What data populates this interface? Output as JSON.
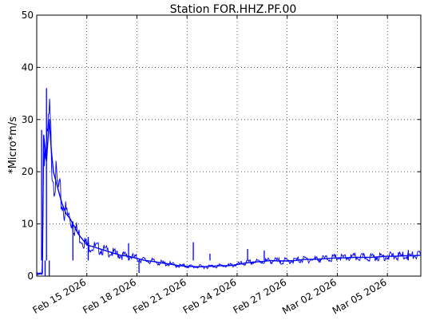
{
  "chart_data": {
    "type": "line",
    "title": "Station FOR.HHZ.PF.00",
    "xlabel": "",
    "ylabel": "*Micro*m/s",
    "xlim": [
      "2026-02-12",
      "2026-03-07"
    ],
    "ylim": [
      0,
      50
    ],
    "y_ticks": [
      0,
      10,
      20,
      30,
      40,
      50
    ],
    "x_ticks": [
      {
        "date": "2026-02-15",
        "label": "Feb 15 2026"
      },
      {
        "date": "2026-02-18",
        "label": "Feb 18 2026"
      },
      {
        "date": "2026-02-21",
        "label": "Feb 21 2026"
      },
      {
        "date": "2026-02-24",
        "label": "Feb 24 2026"
      },
      {
        "date": "2026-02-27",
        "label": "Feb 27 2026"
      },
      {
        "date": "2026-03-02",
        "label": "Mar 02 2026"
      },
      {
        "date": "2026-03-05",
        "label": "Mar 05 2026"
      }
    ],
    "grid": true,
    "series": [
      {
        "color": "#0000ff",
        "x": [
          "2026-02-12 00:00",
          "2026-02-12 08:00",
          "2026-02-12 10:00",
          "2026-02-12 14:00",
          "2026-02-12 18:00",
          "2026-02-12 21:00",
          "2026-02-13 00:00",
          "2026-02-13 06:00",
          "2026-02-13 12:00",
          "2026-02-13 18:00",
          "2026-02-14 00:00",
          "2026-02-14 06:00",
          "2026-02-14 12:00",
          "2026-02-14 18:00",
          "2026-02-15 00:00",
          "2026-02-15 12:00",
          "2026-02-16 00:00",
          "2026-02-16 12:00",
          "2026-02-17 00:00",
          "2026-02-17 12:00",
          "2026-02-18 00:00",
          "2026-02-18 12:00",
          "2026-02-19 00:00",
          "2026-02-19 12:00",
          "2026-02-20 00:00",
          "2026-02-20 12:00",
          "2026-02-21 00:00",
          "2026-02-21 12:00",
          "2026-02-22 00:00",
          "2026-02-22 12:00",
          "2026-02-23 00:00",
          "2026-02-23 12:00",
          "2026-02-24 00:00",
          "2026-02-24 12:00",
          "2026-02-25 00:00",
          "2026-02-25 12:00",
          "2026-02-26 00:00",
          "2026-02-26 12:00",
          "2026-02-27 00:00",
          "2026-02-27 12:00",
          "2026-02-28 00:00",
          "2026-02-28 12:00",
          "2026-03-01 00:00",
          "2026-03-01 12:00",
          "2026-03-02 00:00",
          "2026-03-02 12:00",
          "2026-03-03 00:00",
          "2026-03-03 12:00",
          "2026-03-04 00:00",
          "2026-03-04 12:00",
          "2026-03-05 00:00",
          "2026-03-05 12:00",
          "2026-03-06 00:00",
          "2026-03-06 12:00",
          "2026-03-07 00:00"
        ],
        "y": [
          0.3,
          0.5,
          27,
          22,
          30,
          24,
          20,
          17,
          14,
          12,
          11,
          9.5,
          8,
          7,
          6,
          5.5,
          5,
          4.5,
          4,
          3.8,
          3.4,
          3,
          2.8,
          2.5,
          2.3,
          2,
          1.9,
          1.8,
          1.8,
          1.9,
          2,
          2,
          2.2,
          2.5,
          2.7,
          2.8,
          3,
          2.9,
          2.9,
          3,
          3.2,
          3.2,
          3.3,
          3.4,
          3.5,
          3.5,
          3.6,
          3.6,
          3.6,
          3.7,
          3.8,
          3.8,
          3.9,
          3.9,
          4
        ]
      }
    ],
    "spikes": [
      {
        "x": "2026-02-12 14:00",
        "y": 36
      },
      {
        "x": "2026-02-12 18:00",
        "y": 0
      },
      {
        "x": "2026-02-12 12:00",
        "y": 0
      },
      {
        "x": "2026-02-12 07:00",
        "y": 28
      },
      {
        "x": "2026-02-14 04:00",
        "y": 10.5
      },
      {
        "x": "2026-02-15 02:00",
        "y": 7.5
      },
      {
        "x": "2026-02-17 12:00",
        "y": 6.3
      },
      {
        "x": "2026-02-18 03:00",
        "y": 0.6
      },
      {
        "x": "2026-02-21 09:00",
        "y": 6.5
      },
      {
        "x": "2026-02-22 09:00",
        "y": 4.3
      },
      {
        "x": "2026-02-24 15:00",
        "y": 5.2
      },
      {
        "x": "2026-02-25 15:00",
        "y": 4.9
      },
      {
        "x": "2026-03-06 06:00",
        "y": 5
      }
    ]
  }
}
